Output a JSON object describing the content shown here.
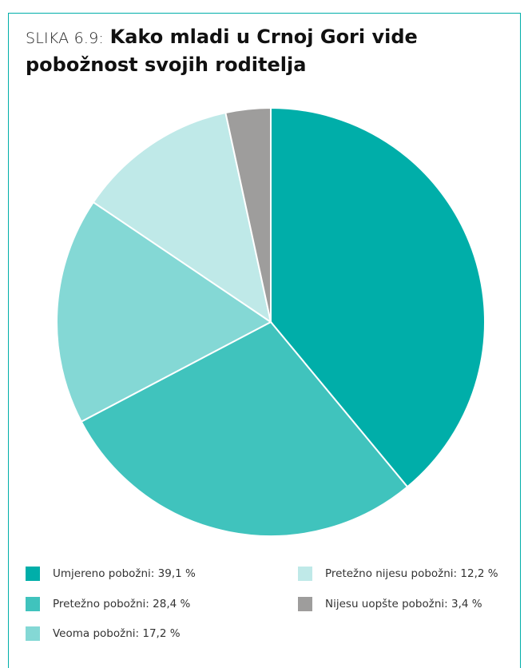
{
  "title": {
    "prefix": "SLIKA 6.9:",
    "main": "Kako mladi u Crnoj Gori vide pobožnost svojih roditelja"
  },
  "chart_data": {
    "type": "pie",
    "slices": [
      {
        "label": "Umjereno pobožni: 39,1 %",
        "value": 39.1,
        "color": "#00aea9"
      },
      {
        "label": "Pretežno pobožni: 28,4 %",
        "value": 28.4,
        "color": "#40c3bd"
      },
      {
        "label": "Veoma pobožni: 17,2 %",
        "value": 17.2,
        "color": "#84d8d5"
      },
      {
        "label": "Pretežno nijesu pobožni: 12,2 %",
        "value": 12.2,
        "color": "#bfe9e8"
      },
      {
        "label": "Nijesu uopšte pobožni: 3,4 %",
        "value": 3.4,
        "color": "#9e9d9c"
      }
    ],
    "start": "12 o'clock",
    "direction": "clockwise",
    "legend": "bottom"
  }
}
